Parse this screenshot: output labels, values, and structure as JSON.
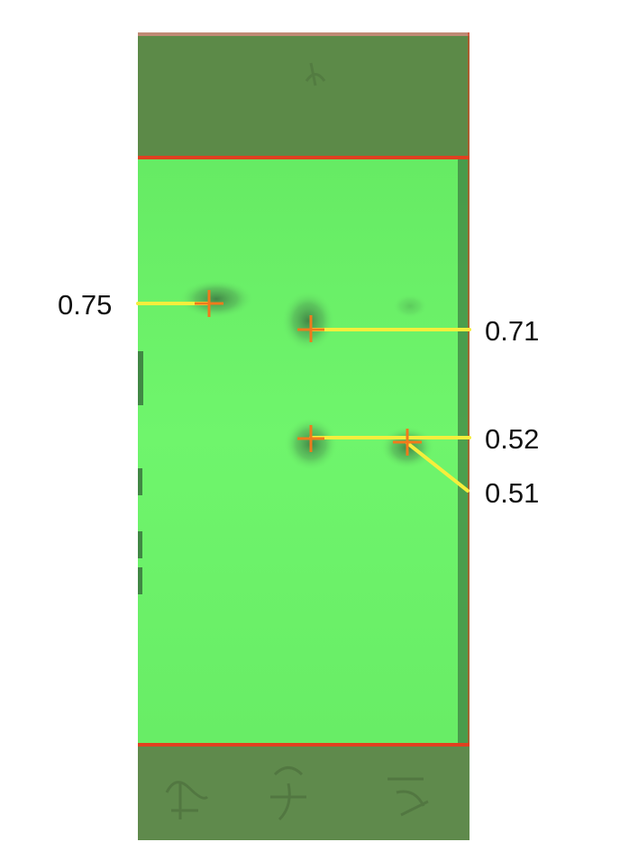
{
  "image": {
    "subject": "TLC plate under UV light",
    "colors": {
      "plate": "#6cf56a",
      "plate_dark_band": "#5a8c4a",
      "front_line": "#e04020",
      "leader": "#f6ee3c",
      "spot_cross": "#f07a1c",
      "spot_shadow": "#3f7d42"
    }
  },
  "rf_labels": [
    {
      "id": "rf-075",
      "value": "0.75"
    },
    {
      "id": "rf-071",
      "value": "0.71"
    },
    {
      "id": "rf-052",
      "value": "0.52"
    },
    {
      "id": "rf-051",
      "value": "0.51"
    }
  ]
}
